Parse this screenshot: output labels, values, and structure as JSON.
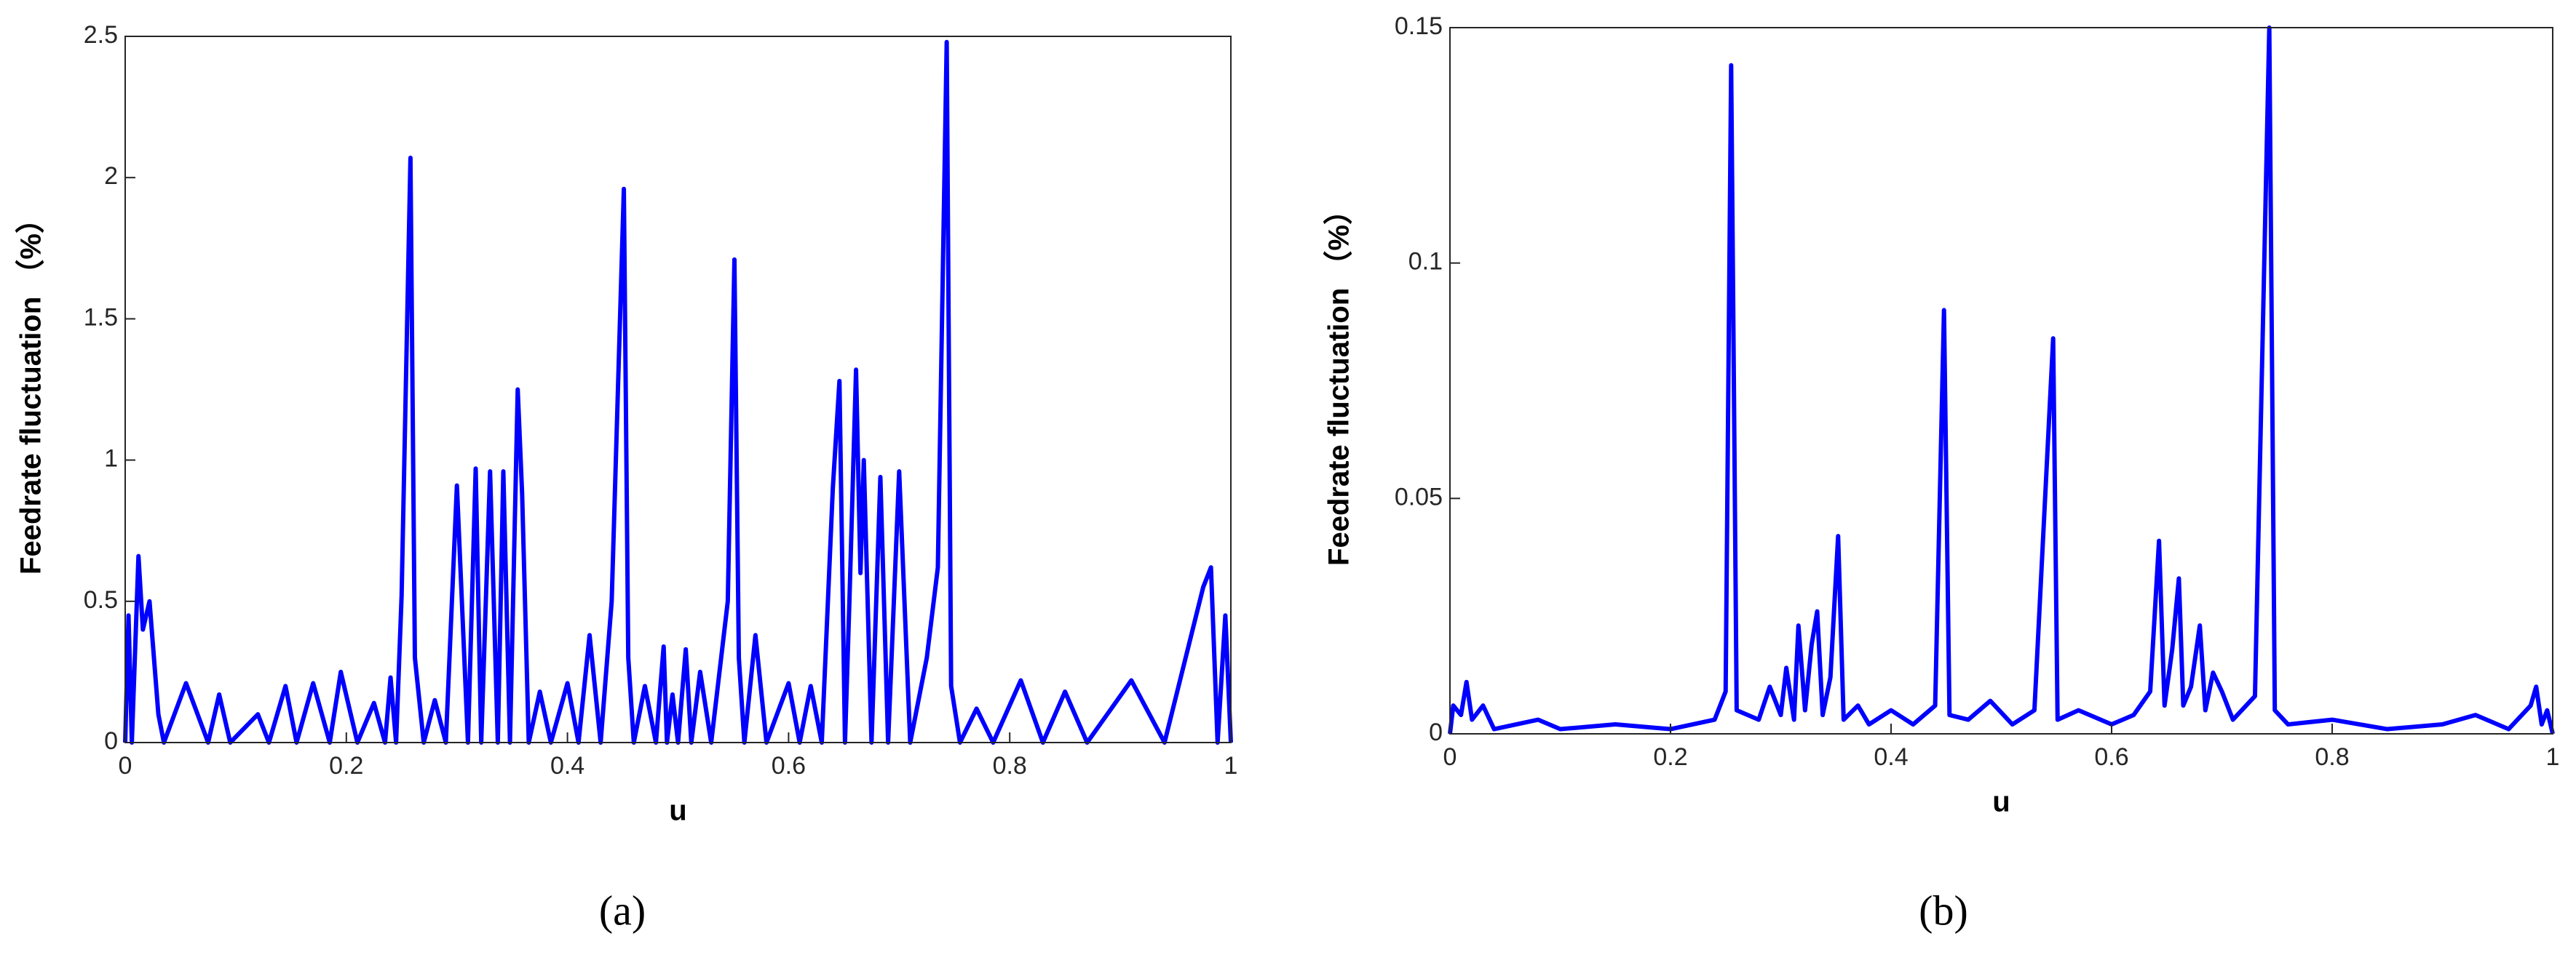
{
  "chart_data": [
    {
      "type": "line",
      "subplot_label": "(a)",
      "x_label": "u",
      "y_label": "Feedrate fluctuation （%）",
      "color": "#0000ff",
      "xlim": [
        0,
        1
      ],
      "xticks": [
        0,
        0.2,
        0.4,
        0.6,
        0.8,
        1
      ],
      "ylim": [
        0,
        2.5
      ],
      "yticks": [
        0,
        0.5,
        1,
        1.5,
        2,
        2.5
      ],
      "x": [
        0,
        0.003,
        0.006,
        0.012,
        0.016,
        0.022,
        0.03,
        0.035,
        0.055,
        0.075,
        0.085,
        0.095,
        0.12,
        0.13,
        0.145,
        0.155,
        0.17,
        0.185,
        0.195,
        0.21,
        0.225,
        0.235,
        0.24,
        0.245,
        0.25,
        0.258,
        0.262,
        0.27,
        0.28,
        0.29,
        0.3,
        0.31,
        0.317,
        0.322,
        0.33,
        0.337,
        0.342,
        0.348,
        0.355,
        0.359,
        0.365,
        0.375,
        0.385,
        0.4,
        0.41,
        0.42,
        0.43,
        0.44,
        0.451,
        0.455,
        0.46,
        0.47,
        0.48,
        0.487,
        0.49,
        0.495,
        0.5,
        0.507,
        0.512,
        0.52,
        0.53,
        0.545,
        0.551,
        0.555,
        0.56,
        0.57,
        0.58,
        0.6,
        0.61,
        0.62,
        0.63,
        0.64,
        0.646,
        0.651,
        0.655,
        0.661,
        0.665,
        0.668,
        0.675,
        0.683,
        0.69,
        0.7,
        0.71,
        0.725,
        0.735,
        0.743,
        0.747,
        0.755,
        0.77,
        0.785,
        0.81,
        0.83,
        0.85,
        0.87,
        0.91,
        0.94,
        0.975,
        0.982,
        0.988,
        0.995,
        1
      ],
      "values": [
        0,
        0.45,
        0,
        0.66,
        0.4,
        0.5,
        0.1,
        0,
        0.21,
        0,
        0.17,
        0,
        0.1,
        0,
        0.2,
        0,
        0.21,
        0,
        0.25,
        0,
        0.14,
        0,
        0.23,
        0,
        0.52,
        2.07,
        0.3,
        0,
        0.15,
        0,
        0.91,
        0,
        0.97,
        0,
        0.96,
        0,
        0.96,
        0,
        1.25,
        0.88,
        0,
        0.18,
        0,
        0.21,
        0,
        0.38,
        0,
        0.5,
        1.96,
        0.3,
        0,
        0.2,
        0,
        0.34,
        0,
        0.17,
        0,
        0.33,
        0,
        0.25,
        0,
        0.5,
        1.71,
        0.3,
        0,
        0.38,
        0,
        0.21,
        0,
        0.2,
        0,
        0.9,
        1.28,
        0,
        0.5,
        1.32,
        0.6,
        1.0,
        0,
        0.94,
        0,
        0.96,
        0,
        0.3,
        0.62,
        2.48,
        0.2,
        0,
        0.12,
        0,
        0.22,
        0,
        0.18,
        0,
        0.22,
        0,
        0.55,
        0.62,
        0,
        0.45,
        0
      ]
    },
    {
      "type": "line",
      "subplot_label": "(b)",
      "x_label": "u",
      "y_label": "Feedrate fluctuation （%）",
      "color": "#0000ff",
      "xlim": [
        0,
        1
      ],
      "xticks": [
        0,
        0.2,
        0.4,
        0.6,
        0.8,
        1
      ],
      "ylim": [
        0,
        0.15
      ],
      "yticks": [
        0,
        0.05,
        0.1,
        0.15
      ],
      "x": [
        0,
        0.003,
        0.01,
        0.015,
        0.02,
        0.03,
        0.04,
        0.08,
        0.1,
        0.15,
        0.2,
        0.24,
        0.25,
        0.255,
        0.26,
        0.28,
        0.29,
        0.3,
        0.305,
        0.312,
        0.316,
        0.322,
        0.328,
        0.333,
        0.338,
        0.345,
        0.352,
        0.357,
        0.37,
        0.38,
        0.4,
        0.42,
        0.44,
        0.448,
        0.453,
        0.47,
        0.49,
        0.51,
        0.53,
        0.547,
        0.551,
        0.57,
        0.6,
        0.62,
        0.635,
        0.643,
        0.648,
        0.655,
        0.661,
        0.665,
        0.672,
        0.68,
        0.685,
        0.692,
        0.7,
        0.71,
        0.73,
        0.743,
        0.748,
        0.76,
        0.8,
        0.85,
        0.9,
        0.93,
        0.96,
        0.98,
        0.985,
        0.99,
        0.995,
        1
      ],
      "values": [
        0,
        0.006,
        0.004,
        0.011,
        0.003,
        0.006,
        0.001,
        0.003,
        0.001,
        0.002,
        0.001,
        0.003,
        0.009,
        0.142,
        0.005,
        0.003,
        0.01,
        0.004,
        0.014,
        0.003,
        0.023,
        0.005,
        0.019,
        0.026,
        0.004,
        0.012,
        0.042,
        0.003,
        0.006,
        0.002,
        0.005,
        0.002,
        0.006,
        0.09,
        0.004,
        0.003,
        0.007,
        0.002,
        0.005,
        0.084,
        0.003,
        0.005,
        0.002,
        0.004,
        0.009,
        0.041,
        0.006,
        0.018,
        0.033,
        0.006,
        0.01,
        0.023,
        0.005,
        0.013,
        0.009,
        0.003,
        0.008,
        0.15,
        0.005,
        0.002,
        0.003,
        0.001,
        0.002,
        0.004,
        0.001,
        0.006,
        0.01,
        0.002,
        0.005,
        0
      ]
    }
  ]
}
